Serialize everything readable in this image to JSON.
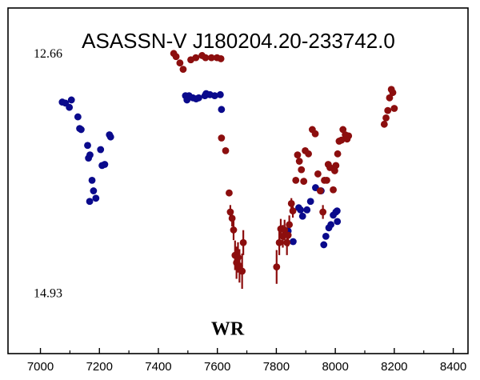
{
  "chart_data": {
    "type": "scatter",
    "title": "ASASSN-V J180204.20-233742.0",
    "xlabel": "",
    "ylabel": "",
    "xlim": [
      6890,
      8450
    ],
    "ylim": [
      15.5,
      12.23
    ],
    "y_inverted": true,
    "x_ticks": [
      7000,
      7200,
      7400,
      7600,
      7800,
      8000,
      8200,
      8400
    ],
    "x_tick_labels": [
      "7000",
      "7200",
      "7400",
      "7600",
      "7800",
      "8000",
      "8200",
      "8400"
    ],
    "y_labels": [
      {
        "text": "12.66",
        "value": 12.66
      },
      {
        "text": "14.93",
        "value": 14.93
      }
    ],
    "annotation": {
      "text": "WR",
      "x": 7635,
      "y": 15.26
    },
    "grid": false,
    "legend": "none",
    "series": [
      {
        "color": "#0a0a8c",
        "points": [
          [
            7074,
            13.12
          ],
          [
            7085,
            13.13
          ],
          [
            7098,
            13.17
          ],
          [
            7105,
            13.1
          ],
          [
            7127,
            13.26
          ],
          [
            7133,
            13.37
          ],
          [
            7138,
            13.38
          ],
          [
            7160,
            13.53
          ],
          [
            7163,
            13.65
          ],
          [
            7168,
            13.62
          ],
          [
            7175,
            13.86
          ],
          [
            7180,
            13.96
          ],
          [
            7188,
            14.03
          ],
          [
            7204,
            13.57
          ],
          [
            7209,
            13.72
          ],
          [
            7218,
            13.71
          ],
          [
            7234,
            13.43
          ],
          [
            7238,
            13.45
          ],
          [
            7167,
            14.06
          ],
          [
            7492,
            13.06
          ],
          [
            7497,
            13.1
          ],
          [
            7504,
            13.06
          ],
          [
            7517,
            13.08
          ],
          [
            7528,
            13.09
          ],
          [
            7537,
            13.08
          ],
          [
            7558,
            13.06
          ],
          [
            7562,
            13.04
          ],
          [
            7575,
            13.05
          ],
          [
            7591,
            13.06
          ],
          [
            7610,
            13.05
          ],
          [
            7614,
            13.19
          ],
          [
            7840,
            14.34
          ],
          [
            7857,
            14.44
          ],
          [
            7876,
            14.12
          ],
          [
            7882,
            14.14
          ],
          [
            7889,
            14.2
          ],
          [
            7904,
            14.14
          ],
          [
            7916,
            14.06
          ],
          [
            7933,
            13.93
          ],
          [
            7952,
            13.96
          ],
          [
            7961,
            14.47
          ],
          [
            7968,
            14.39
          ],
          [
            7978,
            14.31
          ],
          [
            7985,
            14.28
          ],
          [
            7993,
            14.19
          ],
          [
            8002,
            14.16
          ],
          [
            8006,
            14.15
          ],
          [
            8007,
            14.25
          ]
        ]
      },
      {
        "color": "#8c0e0e",
        "points": [
          [
            7452,
            12.66
          ],
          [
            7460,
            12.69
          ],
          [
            7473,
            12.75
          ],
          [
            7484,
            12.81
          ],
          [
            7510,
            12.72
          ],
          [
            7527,
            12.7
          ],
          [
            7548,
            12.68
          ],
          [
            7560,
            12.7
          ],
          [
            7580,
            12.7
          ],
          [
            7599,
            12.7
          ],
          [
            7612,
            12.71
          ],
          [
            7614,
            13.46
          ],
          [
            7628,
            13.58
          ],
          [
            7640,
            13.98
          ],
          [
            7644,
            14.16
          ],
          [
            7650,
            14.22
          ],
          [
            7655,
            14.33
          ],
          [
            7660,
            14.57
          ],
          [
            7665,
            14.64
          ],
          [
            7670,
            14.59
          ],
          [
            7675,
            14.67
          ],
          [
            7684,
            14.72
          ],
          [
            7688,
            14.45
          ],
          [
            7801,
            14.68
          ],
          [
            7810,
            14.45
          ],
          [
            7815,
            14.32
          ],
          [
            7822,
            14.39
          ],
          [
            7828,
            14.33
          ],
          [
            7836,
            14.45
          ],
          [
            7840,
            14.38
          ],
          [
            7844,
            14.28
          ],
          [
            7851,
            14.08
          ],
          [
            7856,
            14.15
          ],
          [
            7866,
            13.86
          ],
          [
            7872,
            13.62
          ],
          [
            7878,
            13.68
          ],
          [
            7885,
            13.76
          ],
          [
            7893,
            13.87
          ],
          [
            7898,
            13.58
          ],
          [
            7909,
            13.61
          ],
          [
            7922,
            13.38
          ],
          [
            7932,
            13.42
          ],
          [
            7941,
            13.8
          ],
          [
            7949,
            13.96
          ],
          [
            7958,
            14.16
          ],
          [
            7963,
            13.86
          ],
          [
            7971,
            13.86
          ],
          [
            7976,
            13.71
          ],
          [
            7982,
            13.74
          ],
          [
            7993,
            13.95
          ],
          [
            7998,
            13.77
          ],
          [
            8002,
            13.72
          ],
          [
            8008,
            13.61
          ],
          [
            8013,
            13.49
          ],
          [
            8021,
            13.48
          ],
          [
            8026,
            13.38
          ],
          [
            8034,
            13.43
          ],
          [
            8040,
            13.47
          ],
          [
            8045,
            13.44
          ],
          [
            8166,
            13.33
          ],
          [
            8172,
            13.27
          ],
          [
            8178,
            13.2
          ],
          [
            8184,
            13.08
          ],
          [
            8190,
            13.0
          ],
          [
            8195,
            13.03
          ],
          [
            8200,
            13.18
          ]
        ]
      }
    ]
  }
}
